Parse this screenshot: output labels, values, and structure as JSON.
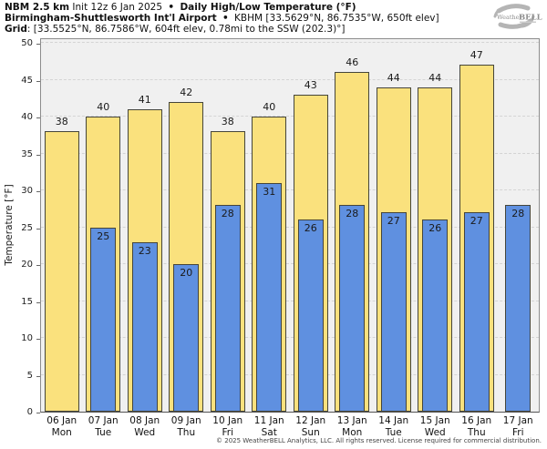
{
  "header": {
    "model": "NBM 2.5 km",
    "init": "Init 12z 6 Jan 2025",
    "sep1": "•",
    "product": "Daily High/Low Temperature (°F)",
    "station": "Birmingham-Shuttlesworth Int'l Airport",
    "sep2": "•",
    "station_detail": "KBHM [33.5629°N, 86.7535°W, 650ft elev]",
    "grid_label": "Grid",
    "grid_value": ": [33.5525°N, 86.7586°W, 604ft elev, 0.78mi to the SSW (202.3)°]"
  },
  "logo": {
    "text_weather": "Weather",
    "text_bell": "BELL"
  },
  "footer": {
    "copyright": "© 2025 WeatherBELL Analytics, LLC. All rights reserved. License required for commercial distribution."
  },
  "chart_data": {
    "type": "bar",
    "title": "Daily High/Low Temperature (°F)",
    "xlabel": "",
    "ylabel": "Temperature [°F]",
    "ylim": [
      0,
      50
    ],
    "yticks": [
      0,
      5,
      10,
      15,
      20,
      25,
      30,
      35,
      40,
      45,
      50
    ],
    "grid": true,
    "legend_position": "none",
    "categories": [
      {
        "date": "06 Jan",
        "dow": "Mon"
      },
      {
        "date": "07 Jan",
        "dow": "Tue"
      },
      {
        "date": "08 Jan",
        "dow": "Wed"
      },
      {
        "date": "09 Jan",
        "dow": "Thu"
      },
      {
        "date": "10 Jan",
        "dow": "Fri"
      },
      {
        "date": "11 Jan",
        "dow": "Sat"
      },
      {
        "date": "12 Jan",
        "dow": "Sun"
      },
      {
        "date": "13 Jan",
        "dow": "Mon"
      },
      {
        "date": "14 Jan",
        "dow": "Tue"
      },
      {
        "date": "15 Jan",
        "dow": "Wed"
      },
      {
        "date": "16 Jan",
        "dow": "Thu"
      },
      {
        "date": "17 Jan",
        "dow": "Fri"
      }
    ],
    "series": [
      {
        "name": "Daily High",
        "color": "#fae17d",
        "values": [
          38,
          40,
          41,
          42,
          38,
          40,
          43,
          46,
          44,
          44,
          47,
          null
        ]
      },
      {
        "name": "Daily Low",
        "color": "#5f90e0",
        "values": [
          null,
          25,
          23,
          20,
          28,
          31,
          26,
          28,
          27,
          26,
          27,
          28
        ]
      }
    ],
    "colors": {
      "plot_bg": "#f0f0f0",
      "gridline": "#d4d4d4",
      "bar_border": "#45453a",
      "axis_border": "#8c8c8c"
    }
  }
}
